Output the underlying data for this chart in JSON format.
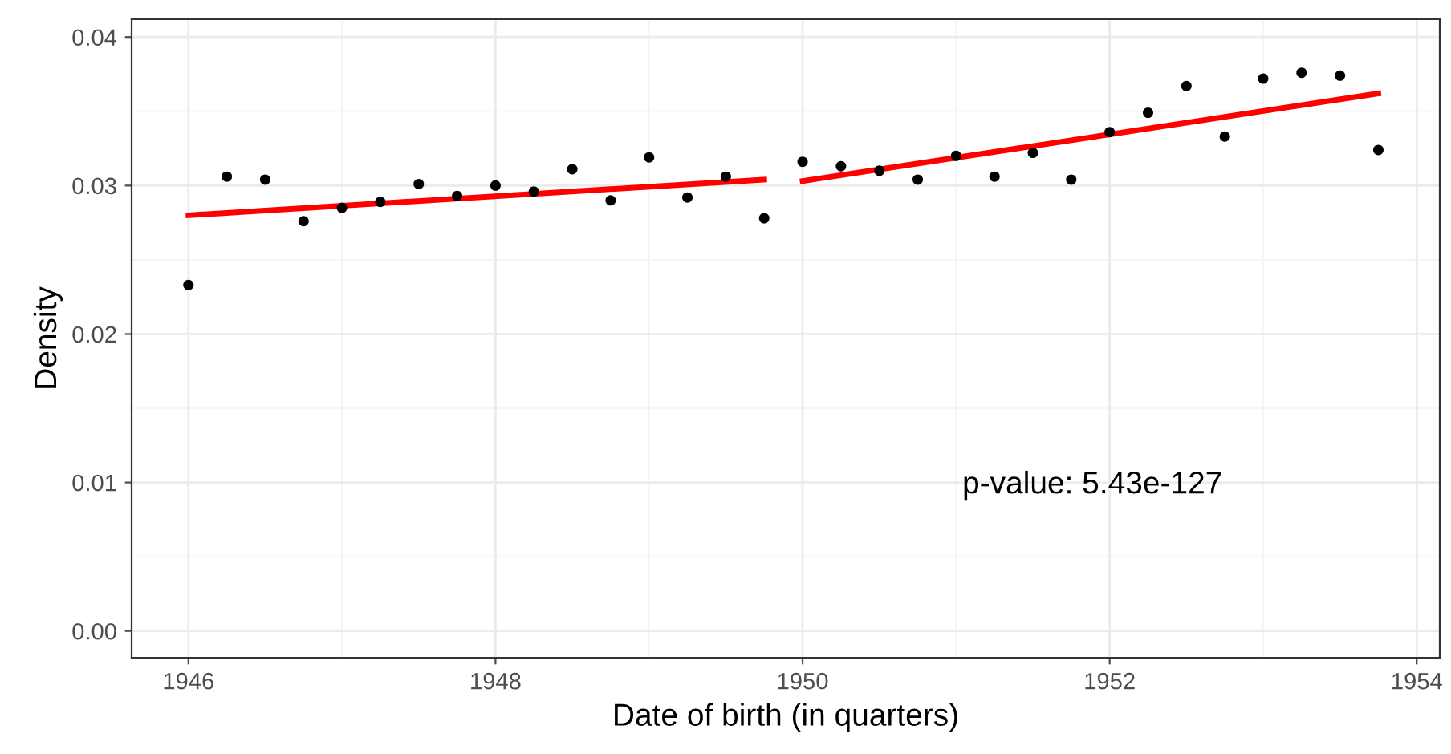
{
  "chart_data": {
    "type": "scatter",
    "xlabel": "Date of birth (in quarters)",
    "ylabel": "Density",
    "annotations": [
      "p-value: 5.43e-127"
    ],
    "xlim": [
      1945.63,
      1954.15
    ],
    "ylim": [
      -0.0018,
      0.0412
    ],
    "xticks": [
      1946,
      1948,
      1950,
      1952,
      1954
    ],
    "yticks": [
      {
        "value": 0,
        "label": "0.00"
      },
      {
        "value": 0.01,
        "label": "0.01"
      },
      {
        "value": 0.02,
        "label": "0.02"
      },
      {
        "value": 0.03,
        "label": "0.03"
      },
      {
        "value": 0.04,
        "label": "0.04"
      }
    ],
    "grid": true,
    "marker": "circle",
    "series": [
      {
        "color": "#000000",
        "x": [
          1946.0,
          1946.25,
          1946.5,
          1946.75,
          1947.0,
          1947.25,
          1947.5,
          1947.75,
          1948.0,
          1948.25,
          1948.5,
          1948.75,
          1949.0,
          1949.25,
          1949.5,
          1949.75,
          1950.0,
          1950.25,
          1950.5,
          1950.75,
          1951.0,
          1951.25,
          1951.5,
          1951.75,
          1952.0,
          1952.25,
          1952.5,
          1952.75,
          1953.0,
          1953.25,
          1953.5,
          1953.75
        ],
        "values": [
          0.0233,
          0.0306,
          0.0304,
          0.0276,
          0.0285,
          0.0289,
          0.0301,
          0.0293,
          0.03,
          0.0296,
          0.0311,
          0.029,
          0.0319,
          0.0292,
          0.0306,
          0.0278,
          0.0316,
          0.0313,
          0.031,
          0.0304,
          0.032,
          0.0306,
          0.0322,
          0.0304,
          0.0336,
          0.0349,
          0.0367,
          0.0333,
          0.0372,
          0.0376,
          0.0374,
          0.0324
        ]
      },
      {
        "type": "line",
        "color": "#ff0000",
        "marker": "none",
        "x": [
          1946.0,
          1949.75
        ],
        "values": [
          0.028,
          0.0304
        ]
      },
      {
        "type": "line",
        "color": "#ff0000",
        "marker": "none",
        "x": [
          1950.0,
          1953.75
        ],
        "values": [
          0.0303,
          0.0362
        ]
      }
    ]
  }
}
